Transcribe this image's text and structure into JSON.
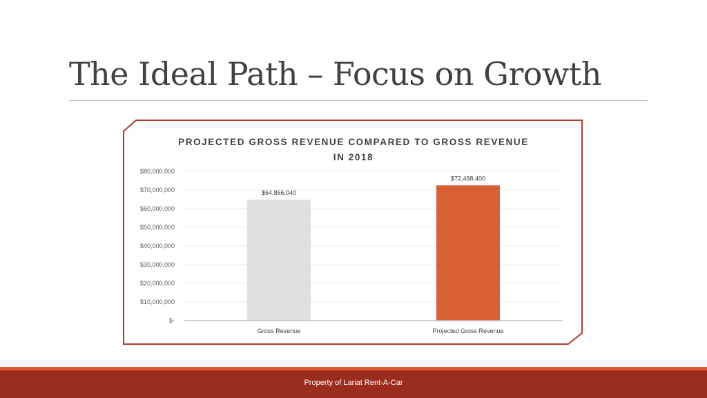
{
  "slide": {
    "title": "The Ideal Path – Focus on Growth",
    "footer": "Property of Lariat Rent-A-Car"
  },
  "colors": {
    "title_text": "#404040",
    "frame_border": "#b03a2e",
    "accent": "#e0582d",
    "footer_bg": "#9b2d1f"
  },
  "chart_data": {
    "type": "bar",
    "title": "PROJECTED GROSS REVENUE COMPARED TO GROSS REVENUE IN 2018",
    "categories": [
      "Gross Revenue",
      "Projected Gross Revenue"
    ],
    "values": [
      64866040,
      72488400
    ],
    "value_labels": [
      "$64,866,040",
      "$72,488,400"
    ],
    "bar_colors": [
      "#e0e0e0",
      "#d95f35"
    ],
    "ylim": [
      0,
      80000000
    ],
    "yticks": [
      0,
      10000000,
      20000000,
      30000000,
      40000000,
      50000000,
      60000000,
      70000000,
      80000000
    ],
    "ytick_labels": [
      "$-",
      "$10,000,000",
      "$20,000,000",
      "$30,000,000",
      "$40,000,000",
      "$50,000,000",
      "$60,000,000",
      "$70,000,000",
      "$80,000,000"
    ],
    "grid": true,
    "xlabel": "",
    "ylabel": ""
  }
}
